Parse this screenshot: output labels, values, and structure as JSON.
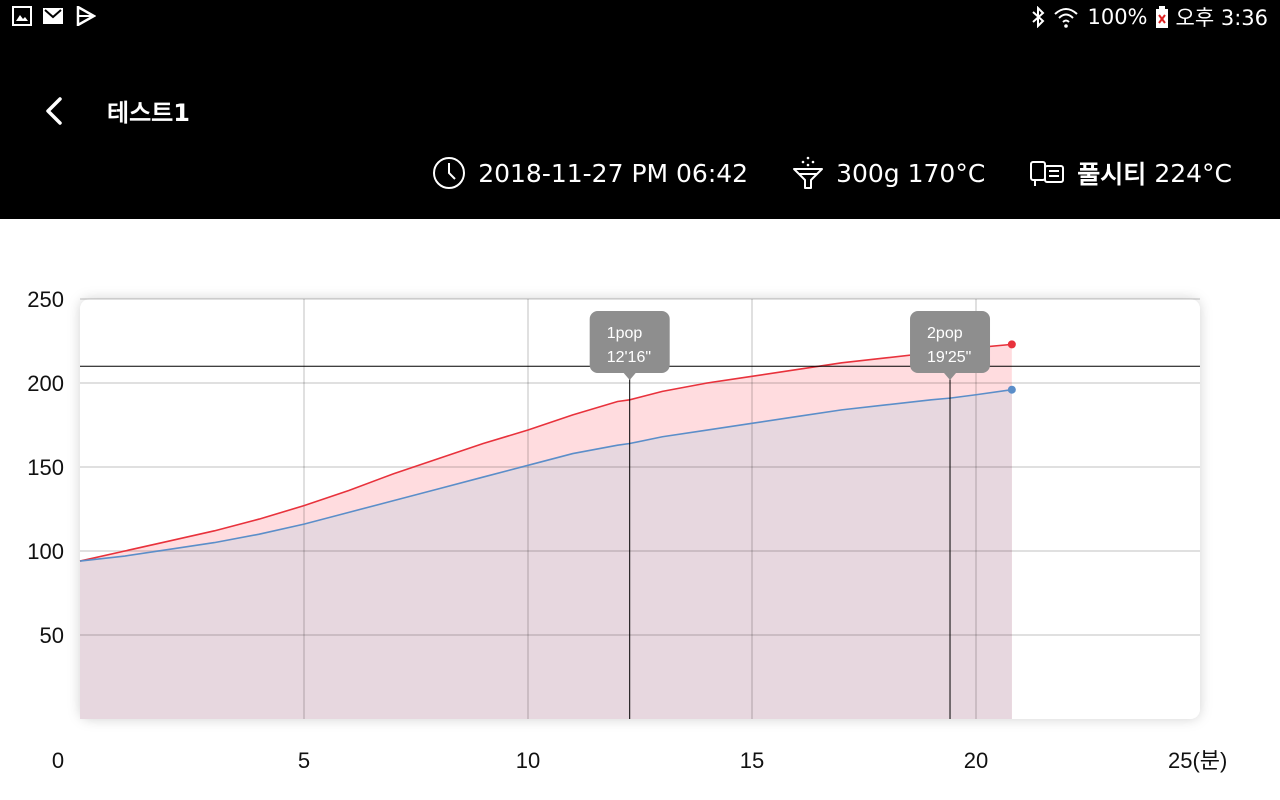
{
  "status_bar": {
    "left_icons": [
      "gallery-icon",
      "gmail-icon",
      "play-store-icon"
    ],
    "bluetooth_icon": "bluetooth-icon",
    "wifi_icon": "wifi-icon",
    "battery_percent": "100%",
    "battery_icon": "battery-icon",
    "time": "오후 3:36"
  },
  "header": {
    "title": "테스트1",
    "datetime": "2018-11-27 PM 06:42",
    "weight_temp": "300g 170°C",
    "machine_name": "풀시티",
    "machine_temp": "224°C"
  },
  "chart_data": {
    "type": "area",
    "x_tick_labels": [
      "0",
      "5",
      "10",
      "15",
      "20",
      "25(분)"
    ],
    "y_tick_labels": [
      "50",
      "100",
      "150",
      "200",
      "250"
    ],
    "xlim": [
      0,
      25
    ],
    "ylim": [
      0,
      250
    ],
    "grid": true,
    "reference_line_y": 210,
    "series": [
      {
        "color": "#e8323c",
        "fill": "#ffdcdf",
        "x": [
          0,
          1,
          2,
          3,
          4,
          5,
          6,
          7,
          8,
          9,
          10,
          11,
          12,
          12.27,
          13,
          14,
          15,
          16,
          17,
          18,
          19,
          19.42,
          20,
          20.8
        ],
        "y": [
          94,
          100,
          106,
          112,
          119,
          127,
          136,
          146,
          155,
          164,
          172,
          181,
          189,
          190,
          195,
          200,
          204,
          208,
          212,
          215,
          218,
          219,
          221,
          223
        ]
      },
      {
        "color": "#5b8ec9",
        "fill": "#e7d7df",
        "x": [
          0,
          1,
          2,
          3,
          4,
          5,
          6,
          7,
          8,
          9,
          10,
          11,
          12,
          12.27,
          13,
          14,
          15,
          16,
          17,
          18,
          19,
          19.42,
          20,
          20.8
        ],
        "y": [
          94,
          97,
          101,
          105,
          110,
          116,
          123,
          130,
          137,
          144,
          151,
          158,
          163,
          164,
          168,
          172,
          176,
          180,
          184,
          187,
          190,
          191,
          193,
          196
        ]
      }
    ],
    "markers": [
      {
        "label": "1pop",
        "time": "12'16\"",
        "x": 12.27
      },
      {
        "label": "2pop",
        "time": "19'25\"",
        "x": 19.42
      }
    ]
  }
}
